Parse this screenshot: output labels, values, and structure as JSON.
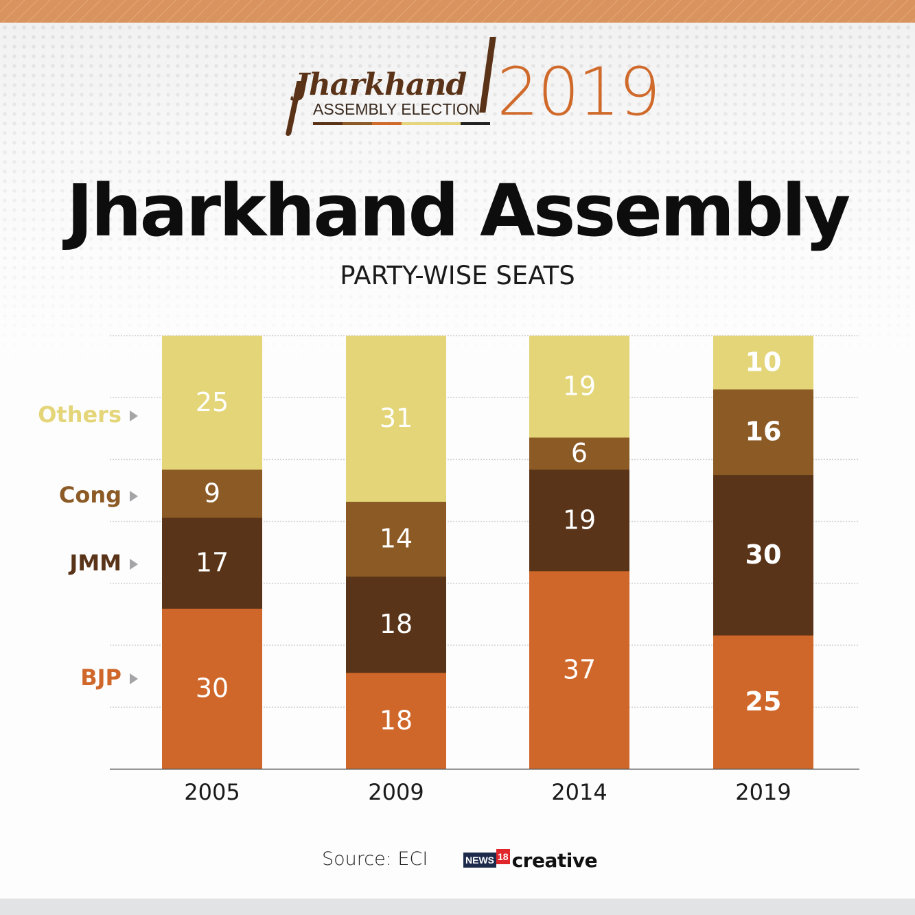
{
  "header": {
    "logo_word": "Jharkhand",
    "logo_subtitle": "ASSEMBLY ELECTION",
    "logo_year": "2019",
    "logo_strip_colors": [
      "#5a3217",
      "#8b5a27",
      "#d06a2b",
      "#e5d57e",
      "#e5d57e",
      "#222222"
    ],
    "title": "Jharkhand Assembly",
    "subtitle": "PARTY-WISE SEATS"
  },
  "chart_data": {
    "type": "bar",
    "stacked": true,
    "title": "Jharkhand Assembly",
    "subtitle": "PARTY-WISE SEATS",
    "categories": [
      "2005",
      "2009",
      "2014",
      "2019"
    ],
    "series": [
      {
        "name": "BJP",
        "color": "#d0672a",
        "values": [
          30,
          18,
          37,
          25
        ]
      },
      {
        "name": "JMM",
        "color": "#5a3418",
        "values": [
          17,
          18,
          19,
          30
        ]
      },
      {
        "name": "Cong",
        "color": "#8b5a25",
        "values": [
          9,
          14,
          6,
          16
        ]
      },
      {
        "name": "Others",
        "color": "#e3d578",
        "values": [
          25,
          31,
          19,
          10
        ]
      }
    ],
    "bold_labels_category": "2019",
    "ylim": [
      0,
      81
    ],
    "grid": true,
    "xlabel": "",
    "ylabel": "",
    "legend_placement": "left",
    "legend_entries": [
      {
        "name": "Others",
        "color": "#e3d578"
      },
      {
        "name": "Cong",
        "color": "#8b5a25"
      },
      {
        "name": "JMM",
        "color": "#5a3418"
      },
      {
        "name": "BJP",
        "color": "#d0672a"
      }
    ]
  },
  "footer": {
    "source": "Source: ECI",
    "brand_news": "NEWS",
    "brand_18": "18",
    "brand_creative": "creative"
  }
}
